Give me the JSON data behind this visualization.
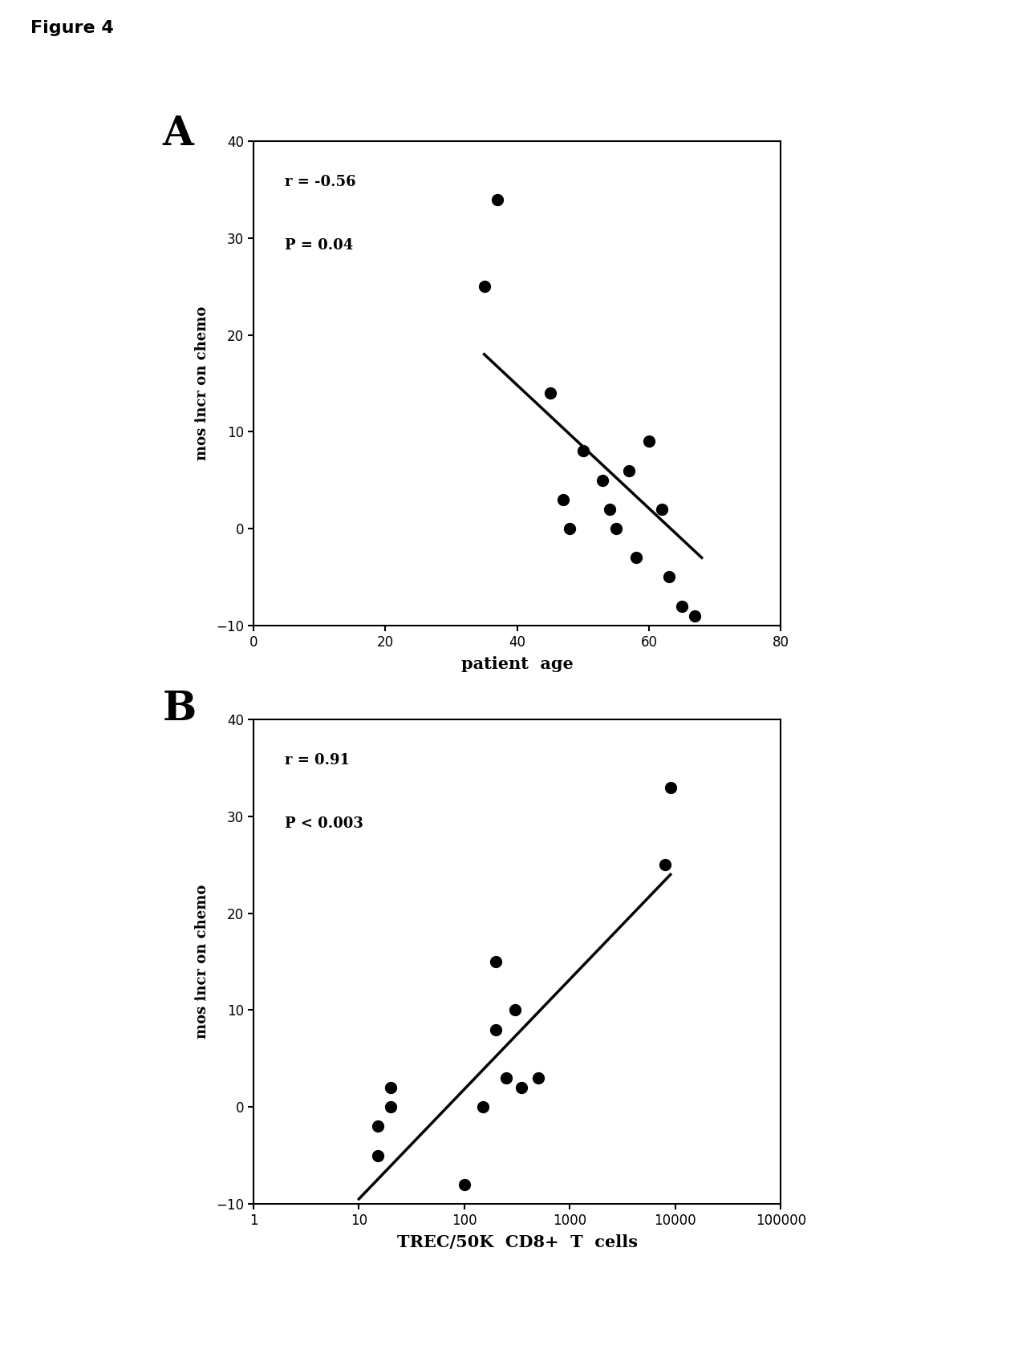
{
  "figure_label": "Figure 4",
  "panel_A_label": "A",
  "panel_B_label": "B",
  "panel_A": {
    "x": [
      35,
      37,
      45,
      47,
      48,
      50,
      53,
      54,
      55,
      57,
      58,
      60,
      62,
      63,
      65,
      67
    ],
    "y": [
      25,
      34,
      14,
      3,
      0,
      8,
      5,
      2,
      0,
      6,
      -3,
      9,
      2,
      -5,
      -8,
      -9
    ],
    "line_x": [
      35,
      68
    ],
    "line_y": [
      18,
      -3
    ],
    "annotation_line1": "r = -0.56",
    "annotation_line2": "P = 0.04",
    "xlabel": "patient  age",
    "ylabel": "mos incr on chemo",
    "xlim": [
      0,
      80
    ],
    "ylim": [
      -10,
      40
    ],
    "xticks": [
      0,
      20,
      40,
      60,
      80
    ],
    "yticks": [
      -10,
      0,
      10,
      20,
      30,
      40
    ]
  },
  "panel_B": {
    "x": [
      15,
      15,
      20,
      20,
      100,
      150,
      200,
      200,
      250,
      300,
      350,
      500,
      8000,
      9000
    ],
    "y": [
      -2,
      -5,
      0,
      2,
      -8,
      0,
      8,
      15,
      3,
      10,
      2,
      3,
      25,
      33
    ],
    "line_x": [
      10,
      9000
    ],
    "line_y": [
      -9.5,
      24
    ],
    "annotation_line1": "r = 0.91",
    "annotation_line2": "P < 0.003",
    "xlabel": "TREC/50K  CD8+  T  cells",
    "ylabel": "mos incr on chemo",
    "xlim_log": [
      1,
      100000
    ],
    "ylim": [
      -10,
      40
    ],
    "yticks": [
      -10,
      0,
      10,
      20,
      30,
      40
    ]
  },
  "background_color": "#ffffff",
  "scatter_color": "#000000",
  "line_color": "#000000",
  "marker_size": 100
}
